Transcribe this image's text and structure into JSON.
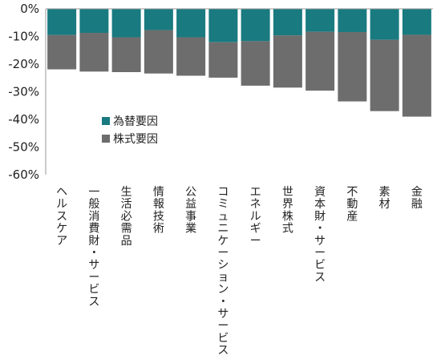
{
  "chart_data": {
    "type": "bar",
    "stacked": true,
    "categories": [
      "ヘルスケア",
      "一般消費財・サービス",
      "生活必需品",
      "情報技術",
      "公益事業",
      "コミュニケーション・サービス",
      "エネルギー",
      "世界株式",
      "資本財・サービス",
      "不動産",
      "素材",
      "金融"
    ],
    "series": [
      {
        "name": "為替要因",
        "color": "#197a80",
        "values": [
          -9.5,
          -8.7,
          -10.3,
          -7.7,
          -10.3,
          -12.1,
          -11.7,
          -9.6,
          -8.3,
          -8.4,
          -11.2,
          -9.4
        ]
      },
      {
        "name": "株式要因",
        "color": "#6d6d6d",
        "values": [
          -12.4,
          -14.0,
          -12.6,
          -15.7,
          -13.9,
          -12.8,
          -16.1,
          -18.9,
          -21.3,
          -25.1,
          -25.8,
          -29.6
        ]
      }
    ],
    "ylim": [
      -60,
      0
    ],
    "yticks": [
      0,
      -10,
      -20,
      -30,
      -40,
      -50,
      -60
    ],
    "ytick_labels": [
      "0%",
      "-10%",
      "-20%",
      "-30%",
      "-40%",
      "-50%",
      "-60%"
    ],
    "legend": "inside-left",
    "grid": false
  }
}
